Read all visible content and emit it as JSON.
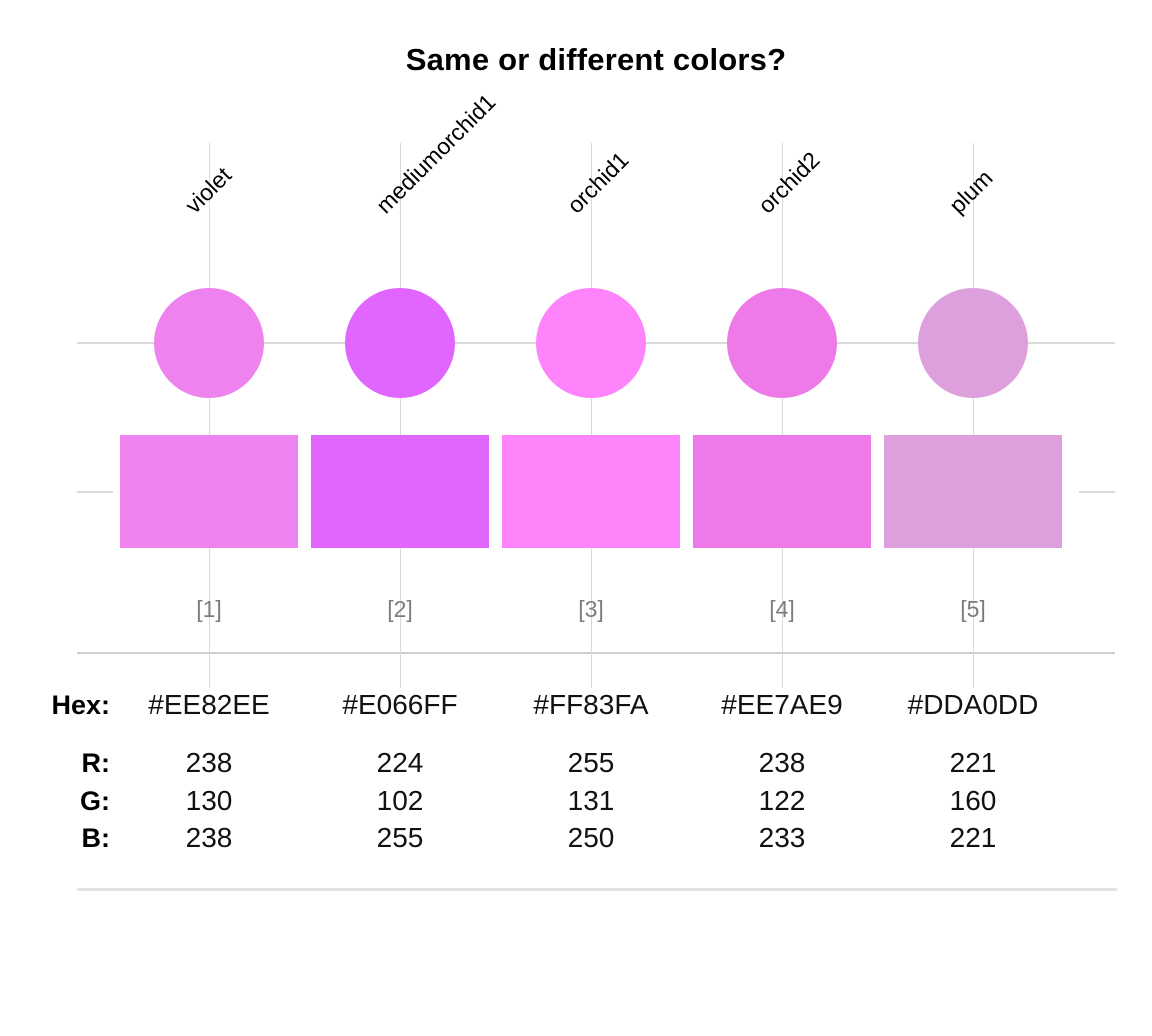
{
  "title": "Same or different colors?",
  "chart_data": {
    "type": "swatch-comparison",
    "categories": [
      "violet",
      "mediumorchid1",
      "orchid1",
      "orchid2",
      "plum"
    ],
    "indices": [
      "[1]",
      "[2]",
      "[3]",
      "[4]",
      "[5]"
    ],
    "hex": [
      "#EE82EE",
      "#E066FF",
      "#FF83FA",
      "#EE7AE9",
      "#DDA0DD"
    ],
    "r": [
      238,
      224,
      255,
      238,
      221
    ],
    "g": [
      130,
      102,
      131,
      122,
      160
    ],
    "b": [
      238,
      255,
      250,
      233,
      221
    ],
    "row_labels": {
      "hex": "Hex:",
      "r": "R:",
      "g": "G:",
      "b": "B:"
    },
    "index_label_color": "#7d7d7d",
    "gridline_color": "#d9d9d9",
    "separator_color": "#cfcfcf",
    "bottom_rule_color": "#e3e3e3",
    "legend_position": "none",
    "grid": "partial"
  }
}
